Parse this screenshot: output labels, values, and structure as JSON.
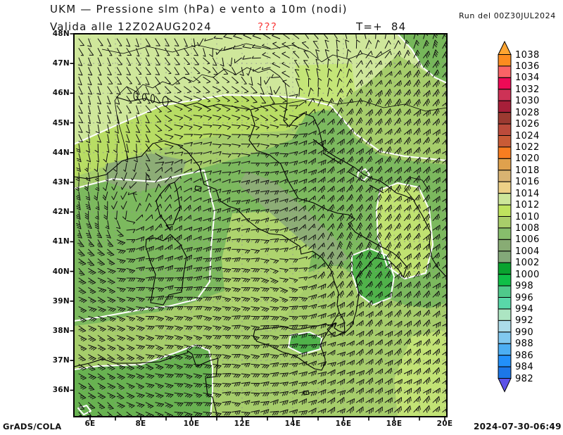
{
  "header": {
    "title": "UKM — Pressione slm (hPa) e vento a 10m (nodi)",
    "valid_label": "Valida alle 12Z02AUG2024",
    "warning": "???",
    "lead_time": "T=+  84",
    "run_label": "Run del 00Z30JUL2024"
  },
  "footer": {
    "credit": "GrADS/COLA",
    "timestamp": "2024-07-30-06:49"
  },
  "colors": {
    "warning_red": "#f94343",
    "map_base": "#b8dd64",
    "pale_north": "#cfe79b",
    "pale_bright_patch": "#c4e577",
    "mid_green": "#a6cd6b",
    "dark_green": "#7cb95e",
    "sage_green": "#8dad76",
    "ne_dark": "#76b75a",
    "vivid_blob": "#50b24a",
    "africa_dark": "#68b251",
    "s_adriatic_bright": "#c0e271",
    "tyrrhenian": "#aed46e",
    "se_bright": "#c2e275",
    "isobar_white": "#ffffff",
    "coast_black": "#000000",
    "grid_gray": "#8f8f8f"
  },
  "chart_data": {
    "type": "filled_contour_map",
    "model": "UKM",
    "variable": "Pressione slm (hPa) e vento a 10m (nodi)",
    "run": "00Z30JUL2024",
    "valid": "12Z02AUG2024",
    "lead_hours": 84,
    "region": "Italy / central Mediterranean",
    "lon_tick_labels": [
      "6E",
      "8E",
      "10E",
      "12E",
      "14E",
      "16E",
      "18E",
      "20E"
    ],
    "lat_tick_labels": [
      "48N",
      "47N",
      "46N",
      "45N",
      "44N",
      "43N",
      "42N",
      "41N",
      "40N",
      "39N",
      "38N",
      "37N",
      "36N"
    ],
    "lon_axis_range_deg": [
      5.4,
      20.1
    ],
    "lat_axis_range_deg": [
      35.1,
      48.0
    ],
    "grid": "dotted gray, 1 degree spacing",
    "legend_position": "right vertical colorbar",
    "colorbar": {
      "units": "hPa",
      "levels": [
        1038,
        1036,
        1034,
        1032,
        1030,
        1028,
        1026,
        1024,
        1022,
        1020,
        1018,
        1016,
        1014,
        1012,
        1010,
        1008,
        1006,
        1004,
        1002,
        1000,
        998,
        996,
        994,
        992,
        990,
        988,
        986,
        984,
        982
      ],
      "colors": [
        "#ffa531",
        "#fc8c1f",
        "#fa6366",
        "#ee0a56",
        "#cd3256",
        "#a71f39",
        "#9c3a31",
        "#bc4b3b",
        "#c95b36",
        "#f87d20",
        "#dfa14d",
        "#d9b372",
        "#edd086",
        "#cde69a",
        "#bfe35e",
        "#a9ce6a",
        "#87be6c",
        "#88ac74",
        "#83a979",
        "#0aa32f",
        "#0fbf47",
        "#4fc98b",
        "#59d8a9",
        "#ace5c2",
        "#abdbe8",
        "#81c8ef",
        "#4caef3",
        "#2290fa",
        "#1c77e8",
        "#5c52e8"
      ]
    },
    "pressure_field_summary": [
      {
        "area": "Alps and far north",
        "value_hPa": "1012-1014"
      },
      {
        "area": "Po valley band",
        "value_hPa": "1010-1012"
      },
      {
        "area": "NW Italy, Corsica, Sardinia, central Apennines, Adriatic",
        "value_hPa": "1006-1008"
      },
      {
        "area": "Piedmont and Apennine cores",
        "value_hPa": "1004-1006"
      },
      {
        "area": "Albania coast, inner Sicily, Tunisia interior",
        "value_hPa": "1002-1004"
      },
      {
        "area": "southern seas (Tyrrhenian, Ionian, S Adriatic)",
        "value_hPa": "1010-1012"
      }
    ],
    "wind_field": {
      "style": "wind barbs at 10 m (knots)",
      "typical_speed_kn": "5-15",
      "notable_circulations": [
        "cyclonic swirl west of Sardinia",
        "cyclonic swirl S Tyrrhenian",
        "anticyclonic curvature SE Ionian"
      ]
    }
  }
}
